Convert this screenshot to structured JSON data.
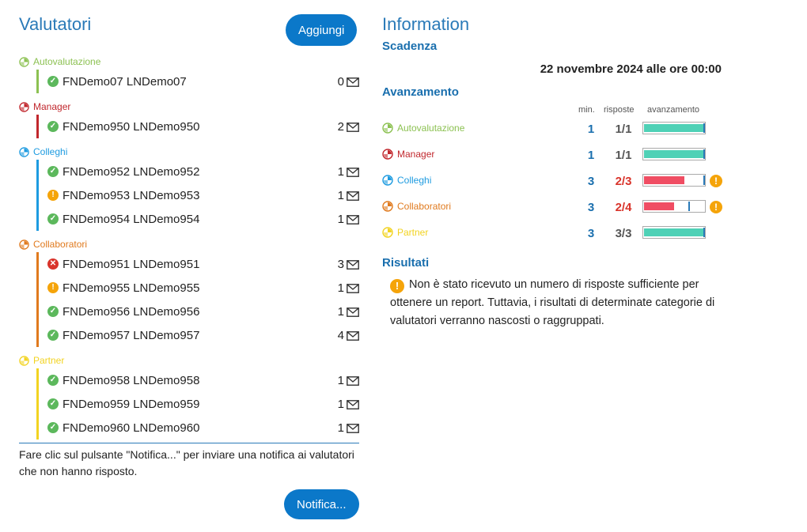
{
  "left": {
    "title": "Valutatori",
    "add_button": "Aggiungi",
    "categories": [
      {
        "name": "Autovalutazione",
        "color": "#8cc152",
        "rows": [
          {
            "name": "FNDemo07 LNDemo07",
            "count": "0",
            "status": "ok"
          }
        ]
      },
      {
        "name": "Manager",
        "color": "#c1272d",
        "rows": [
          {
            "name": "FNDemo950 LNDemo950",
            "count": "2",
            "status": "ok"
          }
        ]
      },
      {
        "name": "Colleghi",
        "color": "#1e9be0",
        "rows": [
          {
            "name": "FNDemo952 LNDemo952",
            "count": "1",
            "status": "ok"
          },
          {
            "name": "FNDemo953 LNDemo953",
            "count": "1",
            "status": "warn"
          },
          {
            "name": "FNDemo954 LNDemo954",
            "count": "1",
            "status": "ok"
          }
        ]
      },
      {
        "name": "Collaboratori",
        "color": "#e07a1e",
        "rows": [
          {
            "name": "FNDemo951 LNDemo951",
            "count": "3",
            "status": "error"
          },
          {
            "name": "FNDemo955 LNDemo955",
            "count": "1",
            "status": "warn"
          },
          {
            "name": "FNDemo956 LNDemo956",
            "count": "1",
            "status": "ok"
          },
          {
            "name": "FNDemo957 LNDemo957",
            "count": "4",
            "status": "ok"
          }
        ]
      },
      {
        "name": "Partner",
        "color": "#f2d321",
        "rows": [
          {
            "name": "FNDemo958 LNDemo958",
            "count": "1",
            "status": "ok"
          },
          {
            "name": "FNDemo959 LNDemo959",
            "count": "1",
            "status": "ok"
          },
          {
            "name": "FNDemo960 LNDemo960",
            "count": "1",
            "status": "ok"
          }
        ]
      }
    ],
    "note": "Fare clic sul pulsante \"Notifica...\" per inviare una notifica ai valutatori che non hanno risposto.",
    "notify_button": "Notifica..."
  },
  "right": {
    "title": "Information",
    "deadline_heading": "Scadenza",
    "deadline": "22 novembre 2024 alle ore 00:00",
    "progress_heading": "Avanzamento",
    "col_min": "min.",
    "col_responses": "risposte",
    "col_progress": "avanzamento",
    "progress": [
      {
        "name": "Autovalutazione",
        "color": "#8cc152",
        "min": "1",
        "responses": "1/1",
        "ratio": 1.0,
        "min_ratio": 1.0,
        "ok": true
      },
      {
        "name": "Manager",
        "color": "#c1272d",
        "min": "1",
        "responses": "1/1",
        "ratio": 1.0,
        "min_ratio": 1.0,
        "ok": true
      },
      {
        "name": "Colleghi",
        "color": "#1e9be0",
        "min": "3",
        "responses": "2/3",
        "ratio": 0.667,
        "min_ratio": 1.0,
        "ok": false
      },
      {
        "name": "Collaboratori",
        "color": "#e07a1e",
        "min": "3",
        "responses": "2/4",
        "ratio": 0.5,
        "min_ratio": 0.75,
        "ok": false
      },
      {
        "name": "Partner",
        "color": "#f2d321",
        "min": "3",
        "responses": "3/3",
        "ratio": 1.0,
        "min_ratio": 1.0,
        "ok": true
      }
    ],
    "results_heading": "Risultati",
    "results_text": "Non è stato ricevuto un numero di risposte sufficiente per ottenere un report. Tuttavia, i risultati di determinate categorie di valutatori verranno nascosti o raggruppati."
  },
  "colors": {
    "accent": "#0b78c9",
    "ok": "#5cb85c",
    "warn": "#f5a40a",
    "error": "#d9342b",
    "bar_ok": "#4fd1b6",
    "bar_bad": "#f04d63",
    "resp_bad": "#d9342b",
    "resp_ok": "#555555"
  }
}
